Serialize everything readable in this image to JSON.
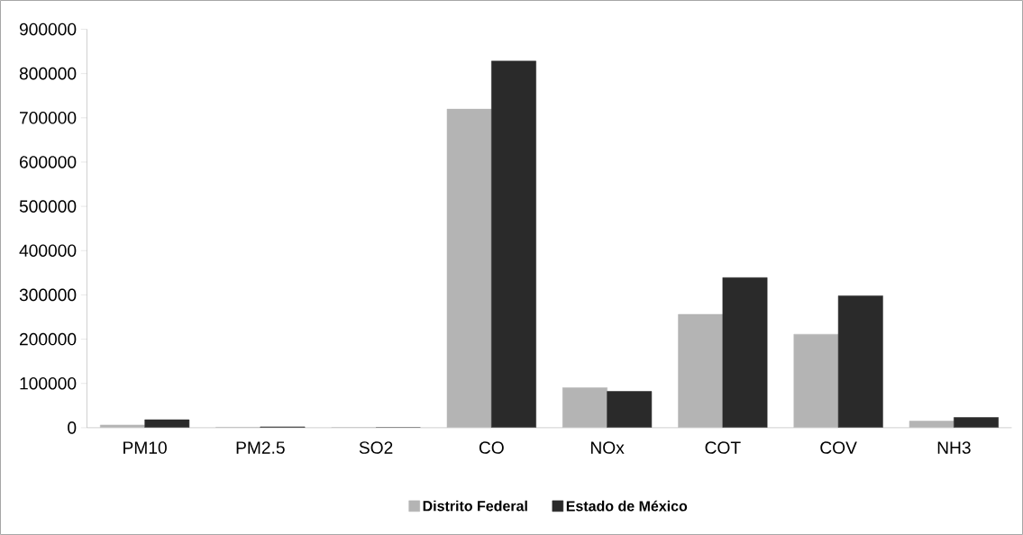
{
  "chart_data": {
    "type": "bar",
    "categories": [
      "PM10",
      "PM2.5",
      "SO2",
      "CO",
      "NOx",
      "COT",
      "COV",
      "NH3"
    ],
    "series": [
      {
        "name": "Distrito Federal",
        "color": "#b4b4b4",
        "values": [
          6000,
          1000,
          0,
          720000,
          90500,
          256000,
          211000,
          15000
        ]
      },
      {
        "name": "Estado de México",
        "color": "#2a2a2a",
        "values": [
          18000,
          2000,
          0,
          828000,
          82000,
          339000,
          298000,
          23000
        ]
      }
    ],
    "ylim": [
      0,
      900000
    ],
    "yticks": [
      0,
      100000,
      200000,
      300000,
      400000,
      500000,
      600000,
      700000,
      800000,
      900000
    ],
    "grid": false,
    "legend": "bottom"
  }
}
